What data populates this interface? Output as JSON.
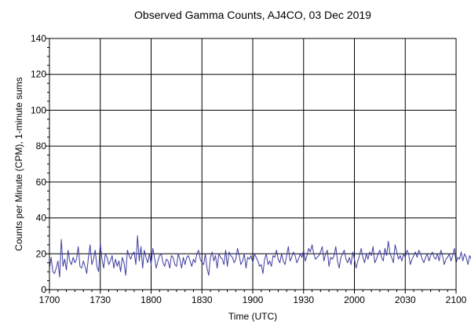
{
  "chart_data": {
    "type": "line",
    "title": "Observed Gamma Counts, AJ4CO, 03 Dec 2019",
    "xlabel": "Time (UTC)",
    "ylabel": "Counts per Minute (CPM), 1-minute sums",
    "x_tick_labels": [
      "1700",
      "1730",
      "1800",
      "1830",
      "1900",
      "1930",
      "2000",
      "2030",
      "2100"
    ],
    "y_tick_labels": [
      "0",
      "20",
      "40",
      "60",
      "80",
      "100",
      "120",
      "140"
    ],
    "xlim": [
      "17:00",
      "21:00"
    ],
    "ylim": [
      0,
      140
    ],
    "grid": true,
    "colors": {
      "line": "#3c3ca0",
      "grid": "#000000",
      "frame": "#000000"
    },
    "series": [
      {
        "x_start": "17:00",
        "x_step_minutes": 1,
        "values": [
          12,
          18,
          10,
          9,
          12,
          16,
          7,
          28,
          13,
          17,
          11,
          22,
          16,
          14,
          18,
          15,
          17,
          24,
          13,
          12,
          16,
          13,
          9,
          18,
          25,
          14,
          17,
          22,
          13,
          10,
          26,
          17,
          12,
          20,
          18,
          14,
          16,
          19,
          12,
          17,
          13,
          16,
          10,
          18,
          15,
          8,
          22,
          19,
          17,
          20,
          21,
          14,
          30,
          16,
          24,
          12,
          22,
          18,
          15,
          20,
          14,
          23,
          18,
          12,
          16,
          19,
          20,
          15,
          13,
          17,
          16,
          12,
          19,
          18,
          14,
          13,
          20,
          17,
          12,
          18,
          14,
          18,
          19,
          16,
          13,
          17,
          15,
          20,
          22,
          17,
          15,
          14,
          20,
          12,
          8,
          18,
          21,
          16,
          19,
          12,
          20,
          18,
          17,
          14,
          22,
          13,
          21,
          19,
          18,
          15,
          17,
          23,
          19,
          14,
          16,
          20,
          12,
          18,
          17,
          19,
          15,
          20,
          18,
          16,
          13,
          14,
          9,
          17,
          20,
          14,
          16,
          13,
          19,
          18,
          22,
          17,
          15,
          20,
          16,
          14,
          19,
          24,
          16,
          18,
          21,
          19,
          15,
          17,
          20,
          18,
          22,
          16,
          19,
          23,
          21,
          25,
          20,
          17,
          18,
          19,
          21,
          24,
          16,
          20,
          22,
          13,
          18,
          17,
          19,
          24,
          16,
          12,
          18,
          20,
          22,
          17,
          15,
          18,
          14,
          21,
          17,
          12,
          16,
          19,
          23,
          18,
          15,
          20,
          17,
          21,
          19,
          24,
          15,
          17,
          20,
          22,
          18,
          16,
          23,
          19,
          27,
          20,
          18,
          15,
          25,
          21,
          17,
          19,
          16,
          20,
          18,
          22,
          20,
          14,
          17,
          19,
          21,
          18,
          22,
          20,
          17,
          15,
          18,
          20,
          16,
          19,
          21,
          18,
          17,
          20,
          16,
          22,
          19,
          14,
          17,
          18,
          20,
          16,
          19,
          23,
          15,
          18,
          17,
          21,
          16,
          20,
          18,
          14,
          19,
          17,
          16,
          22,
          18,
          15,
          20,
          17,
          19,
          23,
          16,
          18
        ]
      }
    ]
  }
}
